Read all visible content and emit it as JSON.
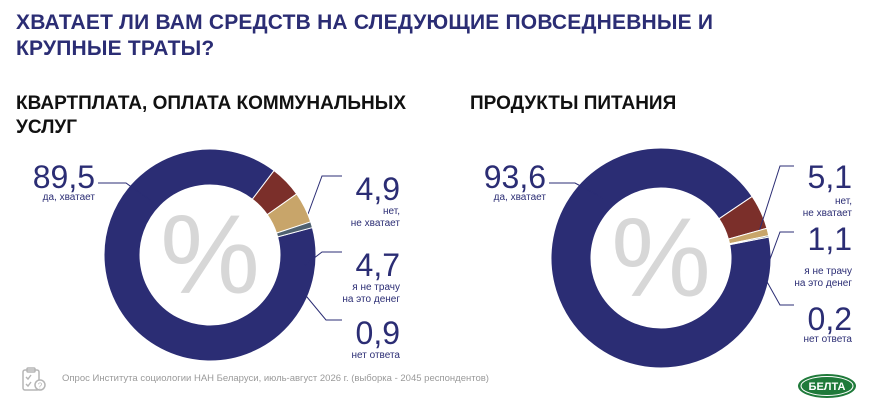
{
  "title": "ХВАТАЕТ ЛИ ВАМ СРЕДСТВ НА СЛЕДУЮЩИЕ ПОВСЕДНЕВНЫЕ И КРУПНЫЕ ТРАТЫ?",
  "percent_symbol": "%",
  "footnote": "Опрос Института социологии НАН Беларуси, июль-август 2026 г. (выборка - 2045 респондентов)",
  "logo_text": "БЕЛТА",
  "colors": {
    "yes": "#2b2d74",
    "no": "#7b2f2a",
    "dont_spend": "#c8a56a",
    "no_answer": "#4f6170",
    "symbol": "#d7d7d7"
  },
  "chart_data": [
    {
      "type": "pie",
      "title": "КВАРТПЛАТА, ОПЛАТА КОММУНАЛЬНЫХ УСЛУГ",
      "slices": [
        {
          "key": "yes",
          "value": 89.5,
          "label": "89,5",
          "sublabel": [
            "да, хватает"
          ]
        },
        {
          "key": "no",
          "value": 4.9,
          "label": "4,9",
          "sublabel": [
            "нет,",
            "не хватает"
          ]
        },
        {
          "key": "dont_spend",
          "value": 4.7,
          "label": "4,7",
          "sublabel": [
            "я не трачу",
            "на это денег"
          ]
        },
        {
          "key": "no_answer",
          "value": 0.9,
          "label": "0,9",
          "sublabel": [
            "нет ответа"
          ]
        }
      ]
    },
    {
      "type": "pie",
      "title": "ПРОДУКТЫ ПИТАНИЯ",
      "slices": [
        {
          "key": "yes",
          "value": 93.6,
          "label": "93,6",
          "sublabel": [
            "да, хватает"
          ]
        },
        {
          "key": "no",
          "value": 5.1,
          "label": "5,1",
          "sublabel": [
            "нет,",
            "не хватает"
          ]
        },
        {
          "key": "dont_spend",
          "value": 1.1,
          "label": "1,1",
          "sublabel": [
            "я не трачу",
            "на это денег"
          ]
        },
        {
          "key": "no_answer",
          "value": 0.2,
          "label": "0,2",
          "sublabel": [
            "нет ответа"
          ]
        }
      ]
    }
  ]
}
